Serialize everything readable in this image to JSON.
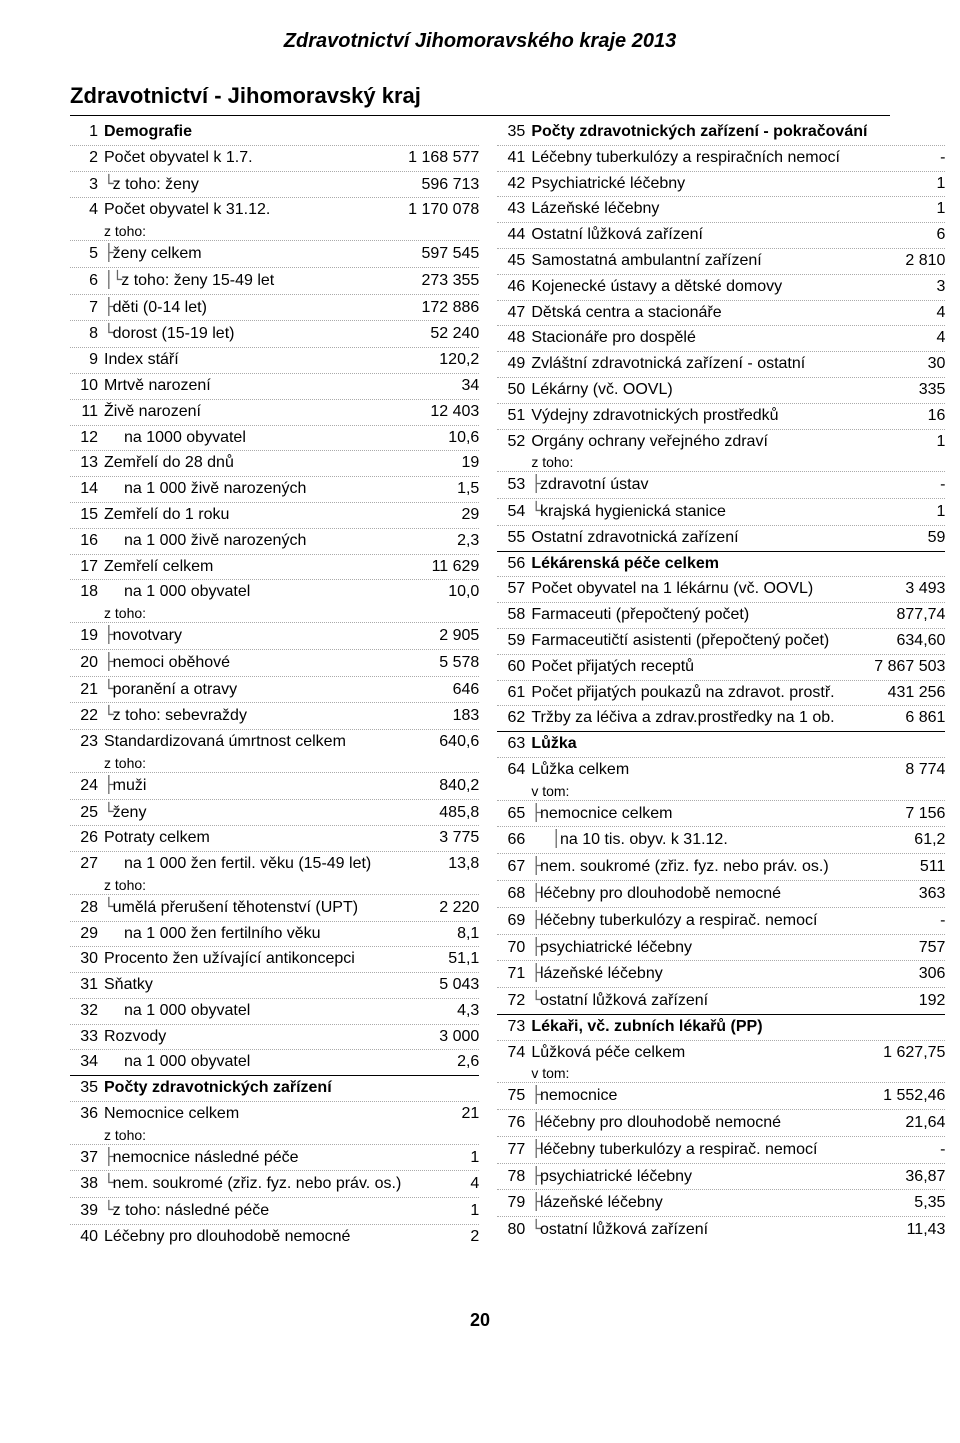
{
  "header": {
    "title": "Zdravotnictví Jihomoravského kraje 2013",
    "section": "Zdravotnictví - Jihomoravský kraj"
  },
  "footer": {
    "page": "20"
  },
  "labels": {
    "ztoho": "z toho:",
    "vtom": "v tom:"
  },
  "left": [
    {
      "n": "1",
      "label": "Demografie",
      "val": "",
      "bold": true
    },
    {
      "n": "2",
      "label": "Počet obyvatel k 1.7.",
      "val": "1 168 577"
    },
    {
      "n": "3",
      "label": "z toho: ženy",
      "val": "596 713",
      "tree": "└"
    },
    {
      "n": "4",
      "label": "Počet obyvatel k 31.12.",
      "val": "1 170 078"
    },
    {
      "ztoho": true
    },
    {
      "n": "5",
      "label": "ženy celkem",
      "val": "597 545",
      "tree": "├"
    },
    {
      "n": "6",
      "label": "z toho: ženy 15-49 let",
      "val": "273 355",
      "tree": "│└"
    },
    {
      "n": "7",
      "label": "děti (0-14 let)",
      "val": "172 886",
      "tree": "├"
    },
    {
      "n": "8",
      "label": "dorost (15-19 let)",
      "val": "52 240",
      "tree": "└"
    },
    {
      "n": "9",
      "label": "Index stáří",
      "val": "120,2"
    },
    {
      "n": "10",
      "label": "Mrtvě narození",
      "val": "34"
    },
    {
      "n": "11",
      "label": "Živě narození",
      "val": "12 403"
    },
    {
      "n": "12",
      "label": "na 1000 obyvatel",
      "val": "10,6",
      "indent": 1
    },
    {
      "n": "13",
      "label": "Zemřelí do 28 dnů",
      "val": "19"
    },
    {
      "n": "14",
      "label": "na 1 000 živě narozených",
      "val": "1,5",
      "indent": 1
    },
    {
      "n": "15",
      "label": "Zemřelí do 1 roku",
      "val": "29"
    },
    {
      "n": "16",
      "label": "na 1 000 živě narozených",
      "val": "2,3",
      "indent": 1
    },
    {
      "n": "17",
      "label": "Zemřelí celkem",
      "val": "11 629"
    },
    {
      "n": "18",
      "label": "na 1 000 obyvatel",
      "val": "10,0",
      "indent": 1
    },
    {
      "ztoho": true
    },
    {
      "n": "19",
      "label": "novotvary",
      "val": "2 905",
      "tree": "├"
    },
    {
      "n": "20",
      "label": "nemoci oběhové",
      "val": "5 578",
      "tree": "├"
    },
    {
      "n": "21",
      "label": "poranění a otravy",
      "val": "646",
      "tree": "└"
    },
    {
      "n": "22",
      "label": "z toho: sebevraždy",
      "val": "183",
      "tree": " └"
    },
    {
      "n": "23",
      "label": "Standardizovaná úmrtnost celkem",
      "val": "640,6"
    },
    {
      "ztoho": true
    },
    {
      "n": "24",
      "label": "muži",
      "val": "840,2",
      "tree": "├"
    },
    {
      "n": "25",
      "label": "ženy",
      "val": "485,8",
      "tree": "└"
    },
    {
      "n": "26",
      "label": "Potraty celkem",
      "val": "3 775"
    },
    {
      "n": "27",
      "label": "na 1 000 žen fertil. věku (15-49 let)",
      "val": "13,8",
      "indent": 1
    },
    {
      "ztoho": true
    },
    {
      "n": "28",
      "label": "umělá přerušení těhotenství (UPT)",
      "val": "2 220",
      "tree": "└"
    },
    {
      "n": "29",
      "label": "na 1 000 žen fertilního věku",
      "val": "8,1",
      "indent": 1
    },
    {
      "n": "30",
      "label": "Procento žen užívající antikoncepci",
      "val": "51,1"
    },
    {
      "n": "31",
      "label": "Sňatky",
      "val": "5 043"
    },
    {
      "n": "32",
      "label": "na 1 000 obyvatel",
      "val": "4,3",
      "indent": 1
    },
    {
      "n": "33",
      "label": "Rozvody",
      "val": "3 000"
    },
    {
      "n": "34",
      "label": "na 1 000 obyvatel",
      "val": "2,6",
      "indent": 1
    },
    {
      "n": "35",
      "label": "Počty zdravotnických zařízení",
      "val": "",
      "bold": true,
      "solid": true
    },
    {
      "n": "36",
      "label": "Nemocnice celkem",
      "val": "21"
    },
    {
      "ztoho": true
    },
    {
      "n": "37",
      "label": "nemocnice následné péče",
      "val": "1",
      "tree": "├"
    },
    {
      "n": "38",
      "label": "nem. soukromé (zřiz. fyz. nebo práv. os.)",
      "val": "4",
      "tree": "└"
    },
    {
      "n": "39",
      "label": "z toho: následné péče",
      "val": "1",
      "tree": " └"
    },
    {
      "n": "40",
      "label": "Léčebny pro dlouhodobě nemocné",
      "val": "2"
    }
  ],
  "right": [
    {
      "n": "35",
      "label": "Počty zdravotnických zařízení - pokračování",
      "val": "",
      "bold": true
    },
    {
      "n": "41",
      "label": "Léčebny tuberkulózy a respiračních nemocí",
      "val": "-"
    },
    {
      "n": "42",
      "label": "Psychiatrické léčebny",
      "val": "1"
    },
    {
      "n": "43",
      "label": "Lázeňské léčebny",
      "val": "1"
    },
    {
      "n": "44",
      "label": "Ostatní lůžková zařízení",
      "val": "6"
    },
    {
      "n": "45",
      "label": "Samostatná ambulantní zařízení",
      "val": "2 810"
    },
    {
      "n": "46",
      "label": "Kojenecké ústavy a dětské domovy",
      "val": "3"
    },
    {
      "n": "47",
      "label": "Dětská centra a stacionáře",
      "val": "4"
    },
    {
      "n": "48",
      "label": "Stacionáře pro dospělé",
      "val": "4"
    },
    {
      "n": "49",
      "label": "Zvláštní zdravotnická zařízení - ostatní",
      "val": "30"
    },
    {
      "n": "50",
      "label": "Lékárny (vč. OOVL)",
      "val": "335"
    },
    {
      "n": "51",
      "label": "Výdejny zdravotnických prostředků",
      "val": "16"
    },
    {
      "n": "52",
      "label": "Orgány ochrany veřejného zdraví",
      "val": "1"
    },
    {
      "ztoho": true
    },
    {
      "n": "53",
      "label": "zdravotní ústav",
      "val": "-",
      "tree": "├"
    },
    {
      "n": "54",
      "label": "krajská hygienická stanice",
      "val": "1",
      "tree": "└"
    },
    {
      "n": "55",
      "label": "Ostatní zdravotnická zařízení",
      "val": "59"
    },
    {
      "n": "56",
      "label": "Lékárenská péče celkem",
      "val": "",
      "bold": true,
      "solid": true
    },
    {
      "n": "57",
      "label": "Počet obyvatel na 1 lékárnu (vč. OOVL)",
      "val": "3 493"
    },
    {
      "n": "58",
      "label": "Farmaceuti (přepočtený počet)",
      "val": "877,74"
    },
    {
      "n": "59",
      "label": "Farmaceutičtí asistenti (přepočtený počet)",
      "val": "634,60"
    },
    {
      "n": "60",
      "label": "Počet přijatých receptů",
      "val": "7 867 503"
    },
    {
      "n": "61",
      "label": "Počet přijatých poukazů na zdravot. prostř.",
      "val": "431 256"
    },
    {
      "n": "62",
      "label": "Tržby za léčiva a zdrav.prostředky na 1 ob.",
      "val": "6 861"
    },
    {
      "n": "63",
      "label": "Lůžka",
      "val": "",
      "bold": true,
      "solid": true
    },
    {
      "n": "64",
      "label": "Lůžka celkem",
      "val": "8 774"
    },
    {
      "vtom": true
    },
    {
      "n": "65",
      "label": "nemocnice celkem",
      "val": "7 156",
      "tree": "├"
    },
    {
      "n": "66",
      "label": "na 10 tis. obyv. k 31.12.",
      "val": "61,2",
      "indent": 1,
      "tree": "│"
    },
    {
      "n": "67",
      "label": "nem. soukromé (zřiz. fyz. nebo práv. os.)",
      "val": "511",
      "tree": "├"
    },
    {
      "n": "68",
      "label": "léčebny pro dlouhodobě nemocné",
      "val": "363",
      "tree": "├"
    },
    {
      "n": "69",
      "label": "léčebny tuberkulózy a respirač. nemocí",
      "val": "-",
      "tree": "├"
    },
    {
      "n": "70",
      "label": "psychiatrické léčebny",
      "val": "757",
      "tree": "├"
    },
    {
      "n": "71",
      "label": "lázeňské léčebny",
      "val": "306",
      "tree": "├"
    },
    {
      "n": "72",
      "label": "ostatní lůžková zařízení",
      "val": "192",
      "tree": "└"
    },
    {
      "n": "73",
      "label": "Lékaři, vč. zubních lékařů (PP)",
      "val": "",
      "bold": true,
      "solid": true
    },
    {
      "n": "74",
      "label": "Lůžková péče celkem",
      "val": "1 627,75"
    },
    {
      "vtom": true
    },
    {
      "n": "75",
      "label": "nemocnice",
      "val": "1 552,46",
      "tree": "├"
    },
    {
      "n": "76",
      "label": "léčebny pro dlouhodobě nemocné",
      "val": "21,64",
      "tree": "├"
    },
    {
      "n": "77",
      "label": "léčebny tuberkulózy a respirač. nemocí",
      "val": "-",
      "tree": "├"
    },
    {
      "n": "78",
      "label": "psychiatrické léčebny",
      "val": "36,87",
      "tree": "├"
    },
    {
      "n": "79",
      "label": "lázeňské léčebny",
      "val": "5,35",
      "tree": "├"
    },
    {
      "n": "80",
      "label": "ostatní lůžková zařízení",
      "val": "11,43",
      "tree": "└"
    }
  ]
}
